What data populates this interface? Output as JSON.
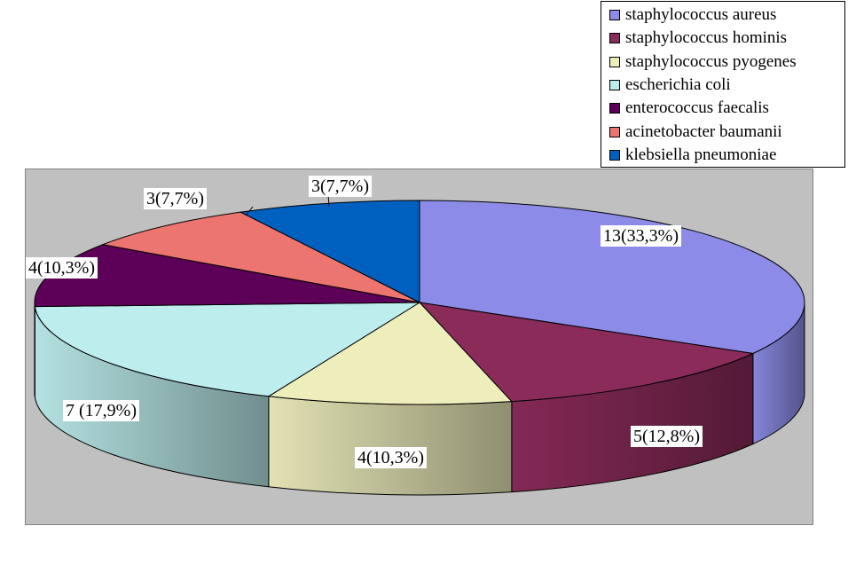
{
  "chart_data": {
    "type": "pie",
    "legend_position": "top-right",
    "slices": [
      {
        "label": "staphylococcus aureus",
        "value": 13,
        "data_label": "13(33,3%)",
        "color": "#8c8ce8"
      },
      {
        "label": "staphylococcus hominis",
        "value": 5,
        "data_label": "5(12,8%)",
        "color": "#8b2b5a"
      },
      {
        "label": "staphylococcus pyogenes",
        "value": 4,
        "data_label": "4(10,3%)",
        "color": "#eeeebd"
      },
      {
        "label": "escherichia coli",
        "value": 7,
        "data_label": "7 (17,9%)",
        "color": "#bdeded"
      },
      {
        "label": "enterococcus faecalis",
        "value": 4,
        "data_label": "4(10,3%)",
        "color": "#5c0058"
      },
      {
        "label": "acinetobacter baumanii",
        "value": 3,
        "data_label": "3(7,7%)",
        "color": "#ec7570"
      },
      {
        "label": "klebsiella pneumoniae",
        "value": 3,
        "data_label": "3(7,7%)",
        "color": "#0060c0"
      }
    ]
  }
}
